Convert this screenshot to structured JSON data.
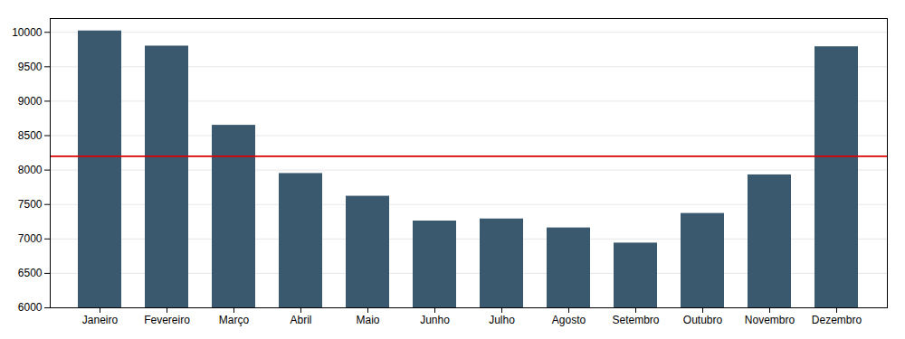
{
  "chart_data": {
    "type": "bar",
    "categories": [
      "Janeiro",
      "Fevereiro",
      "Março",
      "Abril",
      "Maio",
      "Junho",
      "Julho",
      "Agosto",
      "Setembro",
      "Outubro",
      "Novembro",
      "Dezembro"
    ],
    "values": [
      10020,
      9800,
      8650,
      7950,
      7620,
      7260,
      7290,
      7160,
      6940,
      7370,
      7930,
      9790
    ],
    "color": "#3a586e",
    "reference_line": {
      "value": 8200,
      "color": "#dd0000"
    },
    "ylim": [
      6000,
      10200
    ],
    "yticks": [
      6000,
      6500,
      7000,
      7500,
      8000,
      8500,
      9000,
      9500,
      10000
    ],
    "grid": true
  }
}
